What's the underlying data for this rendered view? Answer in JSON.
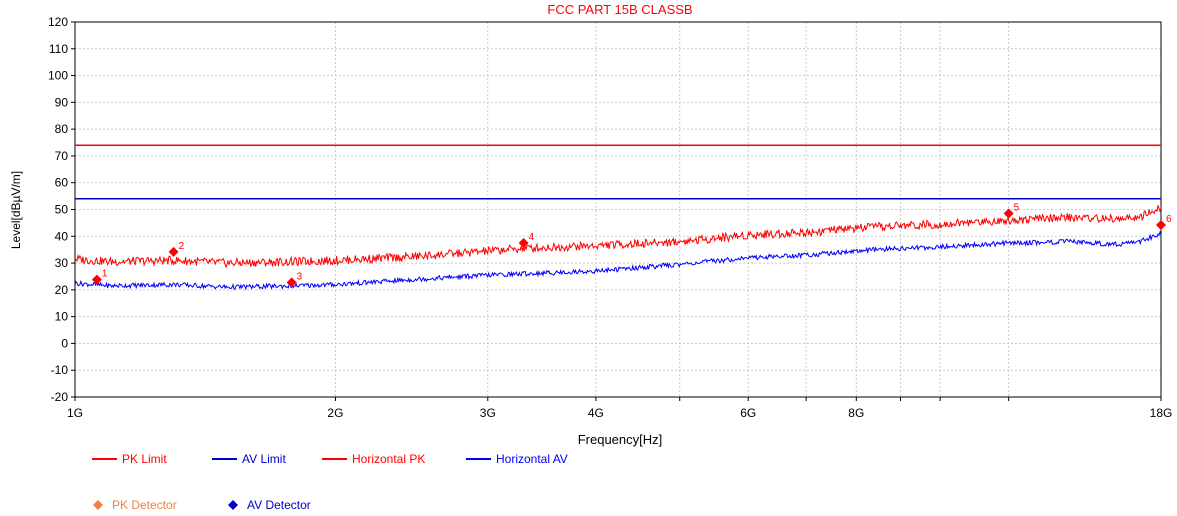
{
  "chart_data": {
    "type": "line",
    "title": "FCC PART 15B CLASSB",
    "xlabel": "Frequency[Hz]",
    "ylabel": "Level[dBµV/m]",
    "x_scale": "log",
    "x_unit": "Hz",
    "xlim": [
      1000000000,
      18000000000
    ],
    "ylim": [
      -20,
      120
    ],
    "grid": true,
    "y_ticks": [
      -20,
      -10,
      0,
      10,
      20,
      30,
      40,
      50,
      60,
      70,
      80,
      90,
      100,
      110,
      120
    ],
    "x_tick_labels": [
      {
        "value": 1000000000,
        "label": "1G"
      },
      {
        "value": 2000000000,
        "label": "2G"
      },
      {
        "value": 3000000000,
        "label": "3G"
      },
      {
        "value": 4000000000,
        "label": "4G"
      },
      {
        "value": 6000000000,
        "label": "6G"
      },
      {
        "value": 8000000000,
        "label": "8G"
      },
      {
        "value": 18000000000,
        "label": "18G"
      }
    ],
    "x_minor_ticks": [
      5000000000,
      7000000000,
      9000000000,
      10000000000,
      12000000000
    ],
    "series": [
      {
        "name": "PK Limit",
        "color": "#ff0000",
        "x": [
          1000000000,
          18000000000
        ],
        "y": [
          74,
          74
        ]
      },
      {
        "name": "AV Limit",
        "color": "#0000cc",
        "x": [
          1000000000,
          18000000000
        ],
        "y": [
          54,
          54
        ]
      },
      {
        "name": "Horizontal PK",
        "color": "#ff0000",
        "x": [
          1000000000,
          1100000000,
          1300000000,
          1500000000,
          1800000000,
          2000000000,
          2500000000,
          3000000000,
          3300000000,
          4000000000,
          5000000000,
          6000000000,
          7000000000,
          8000000000,
          9000000000,
          10000000000,
          12000000000,
          14000000000,
          16000000000,
          17000000000,
          18000000000
        ],
        "y": [
          31.5,
          30.5,
          31,
          30,
          30.5,
          31,
          32.5,
          34.5,
          35.5,
          36.5,
          38,
          40.5,
          41.5,
          43,
          44,
          44.5,
          46,
          47,
          46.5,
          47,
          50.5
        ]
      },
      {
        "name": "Horizontal AV",
        "color": "#0000ff",
        "x": [
          1000000000,
          1100000000,
          1300000000,
          1500000000,
          1800000000,
          2000000000,
          2500000000,
          3000000000,
          3300000000,
          4000000000,
          5000000000,
          6000000000,
          7000000000,
          8000000000,
          9000000000,
          10000000000,
          12000000000,
          14000000000,
          16000000000,
          17000000000,
          18000000000
        ],
        "y": [
          22.5,
          21.5,
          22,
          21,
          21.5,
          22,
          24,
          25.5,
          26,
          27,
          29.5,
          32,
          33,
          34.5,
          35.5,
          36,
          37.5,
          38,
          37,
          38,
          41
        ]
      }
    ],
    "markers": [
      {
        "label": "1",
        "x": 1060000000,
        "y": 23.8,
        "color": "#ff0000"
      },
      {
        "label": "2",
        "x": 1300000000,
        "y": 34.2,
        "color": "#ff0000"
      },
      {
        "label": "3",
        "x": 1780000000,
        "y": 22.8,
        "color": "#ff0000"
      },
      {
        "label": "4",
        "x": 3300000000,
        "y": 37.5,
        "color": "#ff0000"
      },
      {
        "label": "5",
        "x": 12000000000,
        "y": 48.5,
        "color": "#ff0000"
      },
      {
        "label": "6",
        "x": 18000000000,
        "y": 44.2,
        "color": "#ff0000"
      }
    ],
    "legend": {
      "placement": "bottom-left",
      "lines": [
        {
          "label": "PK Limit",
          "color": "#ff0000"
        },
        {
          "label": "AV Limit",
          "color": "#0000cc"
        },
        {
          "label": "Horizontal PK",
          "color": "#ff0000"
        },
        {
          "label": "Horizontal AV",
          "color": "#0000ff"
        }
      ],
      "detectors": [
        {
          "label": "PK Detector",
          "color": "#f08040"
        },
        {
          "label": "AV Detector",
          "color": "#0000cc"
        }
      ]
    }
  }
}
